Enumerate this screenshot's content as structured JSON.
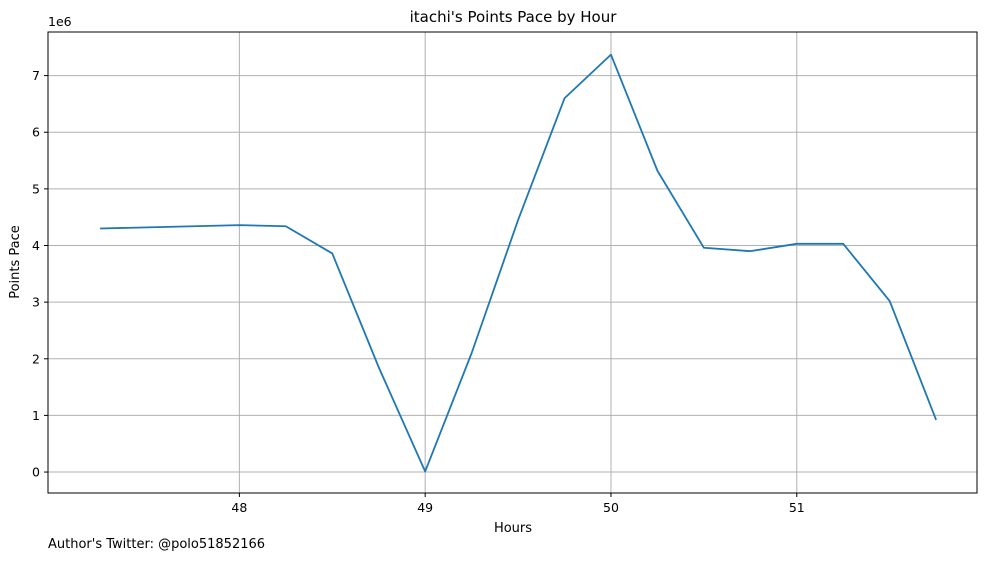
{
  "chart_data": {
    "type": "line",
    "title": "itachi's Points Pace by Hour",
    "xlabel": "Hours",
    "ylabel": "Points Pace",
    "y_offset_label": "1e6",
    "xlim": [
      46.97,
      51.97
    ],
    "ylim": [
      -0.37,
      7.77
    ],
    "x_ticks": [
      48,
      49,
      50,
      51
    ],
    "x_tick_labels": [
      "48",
      "49",
      "50",
      "51"
    ],
    "y_ticks": [
      0,
      1,
      2,
      3,
      4,
      5,
      6,
      7
    ],
    "y_tick_labels": [
      "0",
      "1",
      "2",
      "3",
      "4",
      "5",
      "6",
      "7"
    ],
    "grid": true,
    "series": [
      {
        "color": "#1f77b4",
        "x": [
          47.25,
          48.0,
          48.25,
          48.5,
          48.75,
          49.0,
          49.25,
          49.5,
          49.75,
          50.0,
          50.25,
          50.5,
          50.75,
          51.0,
          51.25,
          51.5,
          51.75
        ],
        "y": [
          4.3,
          4.36,
          4.34,
          3.86,
          1.85,
          0.01,
          2.1,
          4.45,
          6.6,
          7.37,
          5.32,
          3.96,
          3.9,
          4.03,
          4.03,
          3.02,
          0.92
        ]
      }
    ]
  },
  "footer": {
    "author_text": "Author's Twitter: @polo51852166"
  }
}
